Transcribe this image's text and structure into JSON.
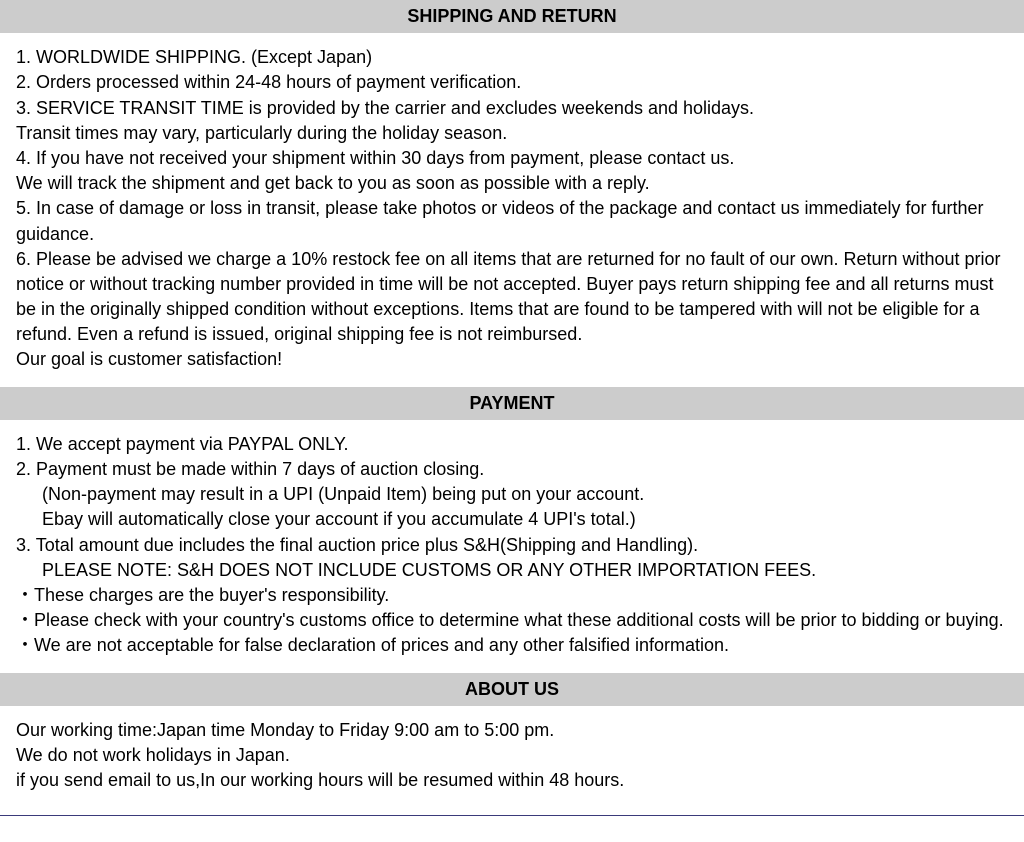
{
  "colors": {
    "header_bg": "#cccccc",
    "text": "#000000",
    "page_bg": "#ffffff",
    "bottom_rule": "#3a3a7a"
  },
  "typography": {
    "font_family": "Verdana, Geneva, sans-serif",
    "body_fontsize": 18,
    "header_fontsize": 18,
    "header_weight": "bold"
  },
  "sections": {
    "shipping": {
      "title": "SHIPPING AND RETURN",
      "lines": [
        "1. WORLDWIDE SHIPPING. (Except Japan)",
        "2. Orders processed within 24-48 hours of payment verification.",
        "3. SERVICE TRANSIT TIME is provided by the carrier and excludes weekends and holidays.",
        "Transit times may vary, particularly during the holiday season.",
        "4. If you have not received your shipment within 30 days from payment, please contact us.",
        "We will track the shipment and get back to you as soon as possible with a reply.",
        "5. In case of damage or loss in transit, please take photos or videos of the package and contact us immediately for further guidance.",
        "6. Please be advised we charge a 10% restock fee on all items that are returned for no fault of our own. Return without prior notice or without tracking number provided in time will be not accepted. Buyer pays return shipping fee and all returns must be in the originally shipped condition without exceptions. Items that are found to be tampered with will not be eligible for a refund. Even a refund is issued, original shipping fee is not reimbursed.",
        "Our goal is customer satisfaction!"
      ]
    },
    "payment": {
      "title": "PAYMENT",
      "lines": [
        {
          "text": "1. We accept payment via PAYPAL ONLY.",
          "indent": false
        },
        {
          "text": "2. Payment must be made within 7 days of auction closing.",
          "indent": false
        },
        {
          "text": "(Non-payment may result in a UPI (Unpaid Item) being put on your account.",
          "indent": true
        },
        {
          "text": "Ebay will automatically close your account if you accumulate 4 UPI's total.)",
          "indent": true
        },
        {
          "text": "3. Total amount due includes the final auction price plus S&H(Shipping and Handling).",
          "indent": false
        },
        {
          "text": "PLEASE NOTE: S&H DOES NOT INCLUDE CUSTOMS OR ANY OTHER IMPORTATION FEES.",
          "indent": true
        },
        {
          "text": "・These charges are the buyer's responsibility.",
          "indent": false
        },
        {
          "text": " ・Please check with your country's customs office to determine what these additional costs will be prior to bidding or buying.",
          "indent": false
        },
        {
          "text": " ・We are not acceptable for false declaration of prices and any other falsified information.",
          "indent": false
        }
      ]
    },
    "about": {
      "title": "ABOUT US",
      "lines": [
        "Our working time:Japan time Monday to Friday 9:00 am to 5:00 pm.",
        "We do not work holidays in Japan.",
        "if you send email to us,In our working hours will be resumed within 48 hours."
      ]
    }
  }
}
